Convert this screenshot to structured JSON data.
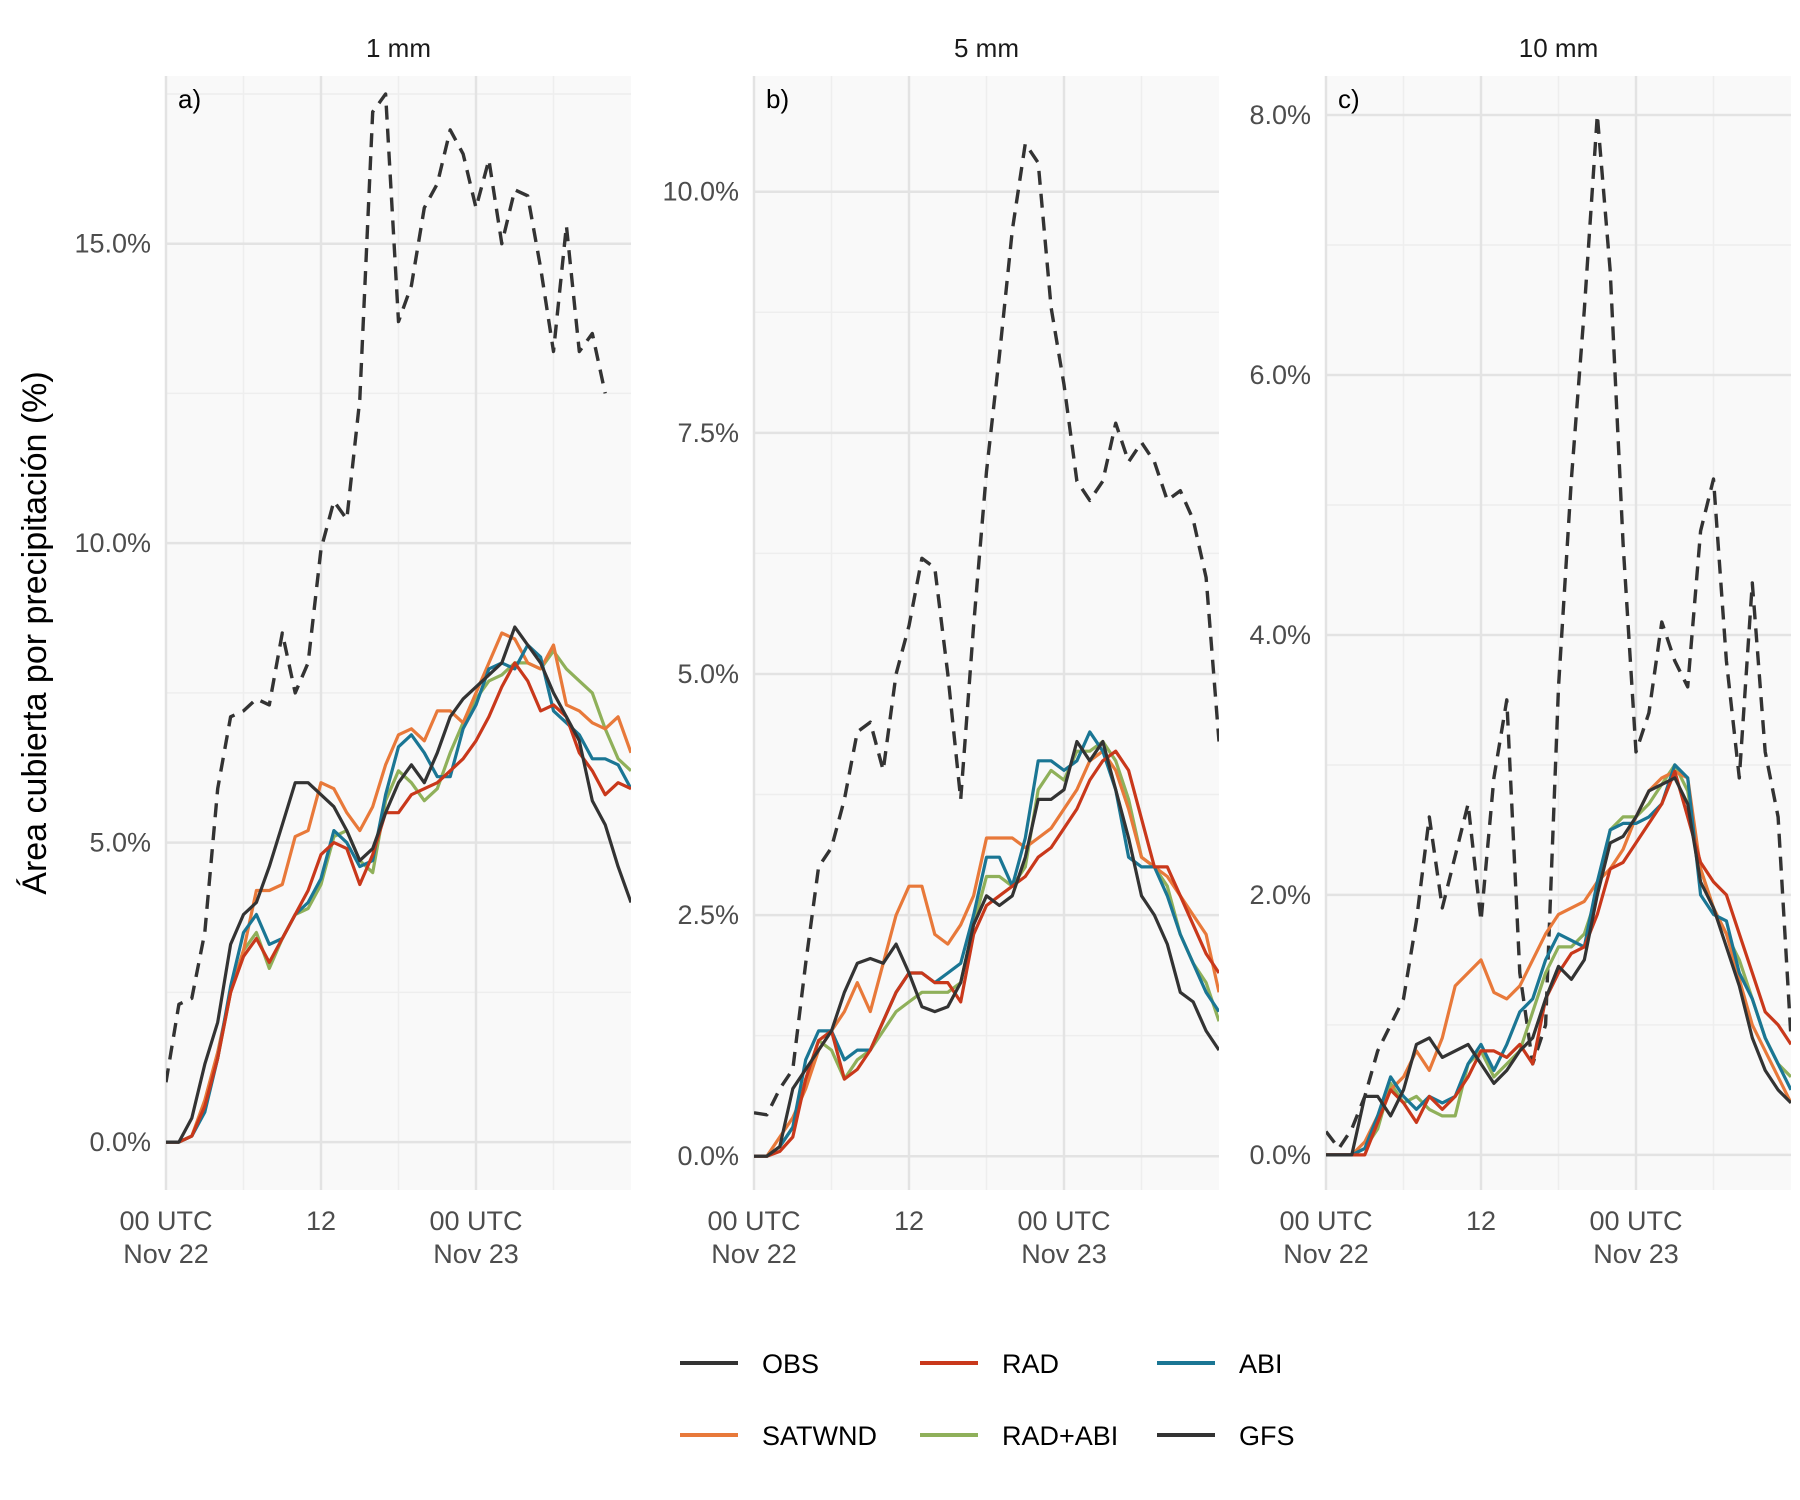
{
  "ylabel": "Área cubierta por precipitación (%)",
  "x_tick_labels": [
    {
      "hours": 0,
      "line1": "00 UTC",
      "line2": "Nov 22"
    },
    {
      "hours": 12,
      "line1": "12",
      "line2": ""
    },
    {
      "hours": 24,
      "line1": "00 UTC",
      "line2": "Nov 23"
    }
  ],
  "colors": {
    "OBS": "#333333",
    "RAD": "#c9381b",
    "ABI": "#1a7694",
    "SATWND": "#e8793a",
    "RAD+ABI": "#8fb05a",
    "GFS": "#333333",
    "panel_bg": "#f9f9f9",
    "grid_major": "#e3e3e3",
    "grid_minor": "#eeeeee"
  },
  "legend": [
    {
      "name": "OBS",
      "dashed": false
    },
    {
      "name": "RAD",
      "dashed": false
    },
    {
      "name": "ABI",
      "dashed": false
    },
    {
      "name": "SATWND",
      "dashed": false
    },
    {
      "name": "RAD+ABI",
      "dashed": false
    },
    {
      "name": "GFS",
      "dashed": false
    }
  ],
  "chart_data": [
    {
      "type": "line",
      "title": "1 mm",
      "tag": "a)",
      "x_unit": "hours since 00 UTC Nov 22",
      "ylim": [
        -0.8,
        17.8
      ],
      "y_ticks": [
        0,
        5,
        10,
        15
      ],
      "y_tick_labels": [
        "0.0%",
        "5.0%",
        "10.0%",
        "15.0%"
      ],
      "xlim": [
        0,
        36
      ],
      "x": [
        0,
        1,
        2,
        3,
        4,
        5,
        6,
        7,
        8,
        9,
        10,
        11,
        12,
        13,
        14,
        15,
        16,
        17,
        18,
        19,
        20,
        21,
        22,
        23,
        24,
        25,
        26,
        27,
        28,
        29,
        30,
        31,
        32,
        33,
        34,
        35,
        36
      ],
      "series": [
        {
          "name": "GFS",
          "dashed": true,
          "values": [
            1.0,
            2.3,
            2.4,
            3.5,
            5.9,
            7.1,
            7.2,
            7.4,
            7.3,
            8.5,
            7.5,
            8.0,
            9.9,
            10.7,
            10.4,
            12.4,
            17.2,
            17.5,
            13.7,
            14.3,
            15.6,
            16.0,
            16.9,
            16.5,
            15.6,
            16.4,
            15.0,
            15.9,
            15.8,
            14.6,
            13.2,
            15.3,
            13.2,
            13.5,
            12.5,
            null,
            null
          ]
        },
        {
          "name": "OBS",
          "dashed": false,
          "values": [
            0.0,
            0.0,
            0.4,
            1.3,
            2.0,
            3.3,
            3.8,
            4.0,
            4.6,
            5.3,
            6.0,
            6.0,
            5.8,
            5.6,
            5.2,
            4.7,
            4.9,
            5.5,
            6.0,
            6.3,
            6.0,
            6.5,
            7.1,
            7.4,
            7.6,
            7.8,
            8.0,
            8.6,
            8.3,
            8.0,
            7.5,
            7.1,
            6.7,
            5.7,
            5.3,
            4.6,
            4.0
          ]
        },
        {
          "name": "SATWND",
          "dashed": false,
          "values": [
            0.0,
            0.0,
            0.1,
            0.7,
            1.5,
            2.5,
            3.2,
            4.2,
            4.2,
            4.3,
            5.1,
            5.2,
            6.0,
            5.9,
            5.5,
            5.2,
            5.6,
            6.3,
            6.8,
            6.9,
            6.7,
            7.2,
            7.2,
            7.0,
            7.5,
            8.0,
            8.5,
            8.4,
            8.0,
            7.9,
            8.3,
            7.3,
            7.2,
            7.0,
            6.9,
            7.1,
            6.5
          ]
        },
        {
          "name": "RAD+ABI",
          "dashed": false,
          "values": [
            0.0,
            0.0,
            0.1,
            0.6,
            1.4,
            2.5,
            3.2,
            3.5,
            2.9,
            3.4,
            3.8,
            3.9,
            4.3,
            5.1,
            5.2,
            4.7,
            4.5,
            5.7,
            6.2,
            6.0,
            5.7,
            5.9,
            6.5,
            7.0,
            7.4,
            7.7,
            7.8,
            8.0,
            8.0,
            7.9,
            8.2,
            7.9,
            7.7,
            7.5,
            6.9,
            6.4,
            6.2
          ]
        },
        {
          "name": "ABI",
          "dashed": false,
          "values": [
            0.0,
            0.0,
            0.1,
            0.5,
            1.4,
            2.6,
            3.5,
            3.8,
            3.3,
            3.4,
            3.8,
            4.0,
            4.4,
            5.2,
            5.0,
            4.6,
            4.7,
            5.8,
            6.6,
            6.8,
            6.5,
            6.1,
            6.1,
            6.9,
            7.3,
            7.9,
            8.0,
            7.9,
            8.3,
            8.1,
            7.2,
            7.0,
            6.8,
            6.4,
            6.4,
            6.3,
            5.9
          ]
        },
        {
          "name": "RAD",
          "dashed": false,
          "values": [
            0.0,
            0.0,
            0.1,
            0.6,
            1.4,
            2.5,
            3.1,
            3.4,
            3.0,
            3.4,
            3.8,
            4.2,
            4.8,
            5.0,
            4.9,
            4.3,
            4.8,
            5.5,
            5.5,
            5.8,
            5.9,
            6.0,
            6.2,
            6.4,
            6.7,
            7.1,
            7.6,
            8.0,
            7.7,
            7.2,
            7.3,
            7.1,
            6.5,
            6.2,
            5.8,
            6.0,
            5.9
          ]
        }
      ]
    },
    {
      "type": "line",
      "title": "5 mm",
      "tag": "b)",
      "x_unit": "hours since 00 UTC Nov 22",
      "ylim": [
        -0.35,
        11.2
      ],
      "y_ticks": [
        0,
        2.5,
        5,
        7.5,
        10
      ],
      "y_tick_labels": [
        "0.0%",
        "2.5%",
        "5.0%",
        "7.5%",
        "10.0%"
      ],
      "xlim": [
        0,
        36
      ],
      "x": [
        0,
        1,
        2,
        3,
        4,
        5,
        6,
        7,
        8,
        9,
        10,
        11,
        12,
        13,
        14,
        15,
        16,
        17,
        18,
        19,
        20,
        21,
        22,
        23,
        24,
        25,
        26,
        27,
        28,
        29,
        30,
        31,
        32,
        33,
        34,
        35,
        36
      ],
      "series": [
        {
          "name": "GFS",
          "dashed": true,
          "values": [
            0.45,
            0.43,
            0.7,
            0.9,
            2.0,
            3.0,
            3.2,
            3.7,
            4.4,
            4.5,
            4.0,
            5.0,
            5.5,
            6.2,
            6.1,
            5.0,
            3.7,
            5.5,
            7.1,
            8.3,
            9.6,
            10.5,
            10.3,
            8.8,
            8.0,
            7.0,
            6.8,
            7.0,
            7.6,
            7.2,
            7.4,
            7.2,
            6.8,
            6.9,
            6.6,
            6.0,
            4.3
          ]
        },
        {
          "name": "OBS",
          "dashed": false,
          "values": [
            0.0,
            0.0,
            0.1,
            0.7,
            0.9,
            1.1,
            1.3,
            1.7,
            2.0,
            2.05,
            2.0,
            2.2,
            1.9,
            1.55,
            1.5,
            1.55,
            1.8,
            2.4,
            2.7,
            2.6,
            2.7,
            3.1,
            3.7,
            3.7,
            3.8,
            4.3,
            4.1,
            4.3,
            3.8,
            3.3,
            2.7,
            2.5,
            2.2,
            1.7,
            1.6,
            1.3,
            1.1
          ]
        },
        {
          "name": "SATWND",
          "dashed": false,
          "values": [
            0.0,
            0.0,
            0.2,
            0.4,
            0.7,
            1.1,
            1.3,
            1.5,
            1.8,
            1.5,
            2.0,
            2.5,
            2.8,
            2.8,
            2.3,
            2.2,
            2.4,
            2.7,
            3.3,
            3.3,
            3.3,
            3.2,
            3.3,
            3.4,
            3.6,
            3.8,
            4.1,
            4.2,
            4.0,
            3.6,
            3.1,
            3.0,
            2.9,
            2.7,
            2.5,
            2.3,
            1.7
          ]
        },
        {
          "name": "RAD+ABI",
          "dashed": false,
          "values": [
            0.0,
            0.0,
            0.1,
            0.3,
            0.8,
            1.2,
            1.1,
            0.8,
            1.0,
            1.1,
            1.3,
            1.5,
            1.6,
            1.7,
            1.7,
            1.7,
            1.8,
            2.4,
            2.9,
            2.9,
            2.8,
            3.0,
            3.8,
            4.0,
            3.9,
            4.2,
            4.2,
            4.3,
            4.1,
            3.7,
            3.1,
            3.0,
            2.8,
            2.3,
            2.0,
            1.8,
            1.4
          ]
        },
        {
          "name": "ABI",
          "dashed": false,
          "values": [
            0.0,
            0.0,
            0.1,
            0.3,
            1.0,
            1.3,
            1.3,
            1.0,
            1.1,
            1.1,
            1.4,
            1.7,
            1.9,
            1.9,
            1.8,
            1.9,
            2.0,
            2.5,
            3.1,
            3.1,
            2.8,
            3.3,
            4.1,
            4.1,
            4.0,
            4.1,
            4.4,
            4.2,
            3.8,
            3.1,
            3.0,
            3.0,
            2.7,
            2.3,
            2.0,
            1.7,
            1.5
          ]
        },
        {
          "name": "RAD",
          "dashed": false,
          "values": [
            0.0,
            0.0,
            0.05,
            0.2,
            0.8,
            1.2,
            1.3,
            0.8,
            0.9,
            1.1,
            1.4,
            1.7,
            1.9,
            1.9,
            1.8,
            1.8,
            1.6,
            2.3,
            2.6,
            2.7,
            2.8,
            2.9,
            3.1,
            3.2,
            3.4,
            3.6,
            3.9,
            4.1,
            4.2,
            4.0,
            3.5,
            3.0,
            3.0,
            2.7,
            2.4,
            2.1,
            1.9
          ]
        }
      ]
    },
    {
      "type": "line",
      "title": "10 mm",
      "tag": "c)",
      "x_unit": "hours since 00 UTC Nov 22",
      "ylim": [
        -0.27,
        8.3
      ],
      "y_ticks": [
        0,
        2,
        4,
        6,
        8
      ],
      "y_tick_labels": [
        "0.0%",
        "2.0%",
        "4.0%",
        "6.0%",
        "8.0%"
      ],
      "xlim": [
        0,
        36
      ],
      "x": [
        0,
        1,
        2,
        3,
        4,
        5,
        6,
        7,
        8,
        9,
        10,
        11,
        12,
        13,
        14,
        15,
        16,
        17,
        18,
        19,
        20,
        21,
        22,
        23,
        24,
        25,
        26,
        27,
        28,
        29,
        30,
        31,
        32,
        33,
        34,
        35,
        36
      ],
      "series": [
        {
          "name": "GFS",
          "dashed": true,
          "values": [
            0.18,
            0.05,
            0.2,
            0.45,
            0.8,
            1.0,
            1.2,
            1.8,
            2.6,
            1.9,
            2.3,
            2.7,
            1.8,
            2.9,
            3.5,
            1.4,
            0.7,
            1.0,
            3.6,
            5.2,
            6.5,
            8.0,
            6.8,
            4.7,
            3.1,
            3.4,
            4.1,
            3.8,
            3.6,
            4.8,
            5.2,
            3.8,
            2.9,
            4.4,
            3.1,
            2.6,
            0.9
          ]
        },
        {
          "name": "OBS",
          "dashed": false,
          "values": [
            0.0,
            0.0,
            0.0,
            0.45,
            0.45,
            0.3,
            0.5,
            0.85,
            0.9,
            0.75,
            0.8,
            0.85,
            0.7,
            0.55,
            0.65,
            0.8,
            0.9,
            1.2,
            1.45,
            1.35,
            1.5,
            2.0,
            2.4,
            2.45,
            2.6,
            2.8,
            2.85,
            2.9,
            2.7,
            2.1,
            1.9,
            1.6,
            1.3,
            0.9,
            0.65,
            0.5,
            0.4
          ]
        },
        {
          "name": "SATWND",
          "dashed": false,
          "values": [
            0.0,
            0.0,
            0.0,
            0.1,
            0.3,
            0.5,
            0.6,
            0.8,
            0.65,
            0.9,
            1.3,
            1.4,
            1.5,
            1.25,
            1.2,
            1.3,
            1.5,
            1.7,
            1.85,
            1.9,
            1.95,
            2.1,
            2.2,
            2.35,
            2.6,
            2.8,
            2.9,
            2.95,
            2.9,
            2.2,
            1.9,
            1.7,
            1.35,
            1.0,
            0.8,
            0.6,
            0.4
          ]
        },
        {
          "name": "RAD+ABI",
          "dashed": false,
          "values": [
            0.0,
            0.0,
            0.0,
            0.05,
            0.2,
            0.55,
            0.4,
            0.45,
            0.35,
            0.3,
            0.3,
            0.7,
            0.8,
            0.6,
            0.7,
            0.8,
            1.1,
            1.4,
            1.6,
            1.6,
            1.7,
            2.0,
            2.5,
            2.6,
            2.6,
            2.7,
            2.85,
            3.0,
            2.8,
            2.2,
            1.9,
            1.7,
            1.5,
            1.2,
            0.9,
            0.7,
            0.6
          ]
        },
        {
          "name": "ABI",
          "dashed": false,
          "values": [
            0.0,
            0.0,
            0.0,
            0.05,
            0.3,
            0.6,
            0.45,
            0.35,
            0.45,
            0.4,
            0.45,
            0.7,
            0.85,
            0.65,
            0.85,
            1.1,
            1.2,
            1.5,
            1.7,
            1.65,
            1.6,
            2.1,
            2.5,
            2.55,
            2.55,
            2.6,
            2.7,
            3.0,
            2.9,
            2.0,
            1.85,
            1.8,
            1.4,
            1.2,
            0.9,
            0.7,
            0.5
          ]
        },
        {
          "name": "RAD",
          "dashed": false,
          "values": [
            0.0,
            0.0,
            0.0,
            0.0,
            0.25,
            0.5,
            0.4,
            0.25,
            0.45,
            0.35,
            0.45,
            0.6,
            0.8,
            0.8,
            0.75,
            0.85,
            0.7,
            1.2,
            1.4,
            1.55,
            1.6,
            1.85,
            2.2,
            2.25,
            2.4,
            2.55,
            2.7,
            2.95,
            2.6,
            2.25,
            2.1,
            2.0,
            1.7,
            1.4,
            1.1,
            1.0,
            0.85
          ]
        }
      ]
    }
  ]
}
